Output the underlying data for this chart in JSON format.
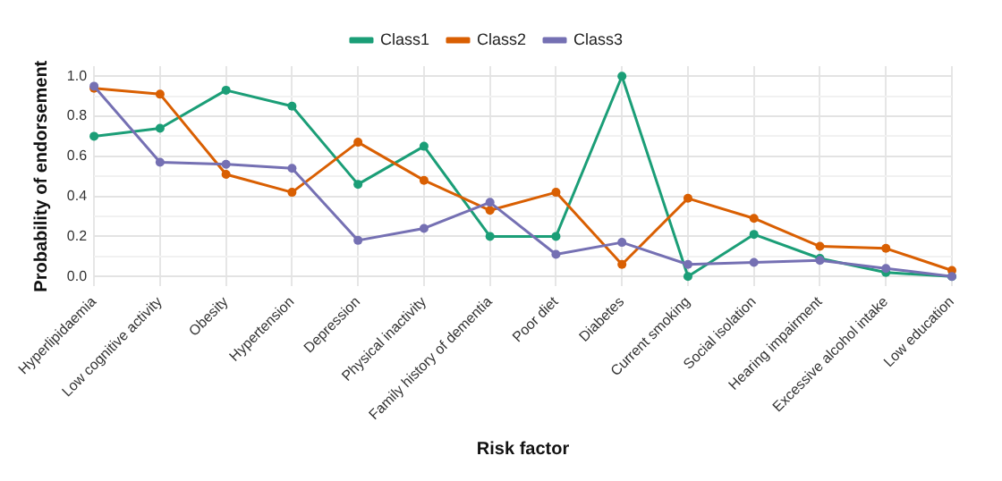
{
  "chart_data": {
    "type": "line",
    "xlabel": "Risk factor",
    "ylabel": "Probability of endorsement",
    "categories": [
      "Hyperlipidaemia",
      "Low cognitive activity",
      "Obesity",
      "Hypertension",
      "Depression",
      "Physical inactivity",
      "Family history of dementia",
      "Poor diet",
      "Diabetes",
      "Current smoking",
      "Social isolation",
      "Hearing impairment",
      "Excessive alcohol intake",
      "Low education"
    ],
    "series": [
      {
        "name": "Class1",
        "color": "#1b9e77",
        "values": [
          0.7,
          0.74,
          0.93,
          0.85,
          0.46,
          0.65,
          0.2,
          0.2,
          1.0,
          0.0,
          0.21,
          0.09,
          0.02,
          0.0
        ]
      },
      {
        "name": "Class2",
        "color": "#d95f02",
        "values": [
          0.94,
          0.91,
          0.51,
          0.42,
          0.67,
          0.48,
          0.33,
          0.42,
          0.06,
          0.39,
          0.29,
          0.15,
          0.14,
          0.03
        ]
      },
      {
        "name": "Class3",
        "color": "#7570b3",
        "values": [
          0.95,
          0.57,
          0.56,
          0.54,
          0.18,
          0.24,
          0.37,
          0.11,
          0.17,
          0.06,
          0.07,
          0.08,
          0.04,
          0.0
        ]
      }
    ],
    "ylim": [
      -0.05,
      1.05
    ],
    "yticks": [
      {
        "value": 0,
        "label": "0.0"
      },
      {
        "value": 0.1,
        "label": null
      },
      {
        "value": 0.2,
        "label": "0.2"
      },
      {
        "value": 0.3,
        "label": null
      },
      {
        "value": 0.4,
        "label": "0.4"
      },
      {
        "value": 0.5,
        "label": null
      },
      {
        "value": 0.6,
        "label": "0.6"
      },
      {
        "value": 0.7,
        "label": null
      },
      {
        "value": 0.8,
        "label": "0.8"
      },
      {
        "value": 0.9,
        "label": null
      },
      {
        "value": 1,
        "label": "1.0"
      }
    ],
    "grid": true,
    "legend": "top",
    "marker": "circle",
    "line_style": "solid"
  }
}
